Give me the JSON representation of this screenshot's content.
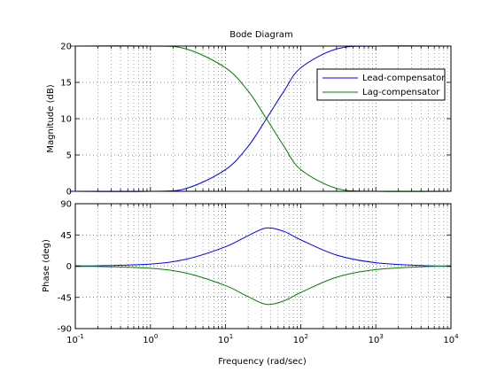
{
  "chart_data": {
    "type": "line",
    "title": "Bode Diagram",
    "xlabel": "Frequency  (rad/sec)",
    "x_scale": "log",
    "xlim": [
      0.1,
      10000
    ],
    "x_ticks": [
      {
        "base": "10",
        "exp": "-1"
      },
      {
        "base": "10",
        "exp": "0"
      },
      {
        "base": "10",
        "exp": "1"
      },
      {
        "base": "10",
        "exp": "2"
      },
      {
        "base": "10",
        "exp": "3"
      },
      {
        "base": "10",
        "exp": "4"
      }
    ],
    "grid": true,
    "legend_placement": "top-right",
    "legend": [
      "Lead-compensator",
      "Lag-compensator"
    ],
    "series_colors": {
      "Lead-compensator": "#0000ff",
      "Lag-compensator": "#008000"
    },
    "magnitude": {
      "ylabel": "Magnitude (dB)",
      "ylim": [
        0,
        20
      ],
      "y_ticks": [
        "0",
        "5",
        "10",
        "15",
        "20"
      ],
      "x": [
        0.1,
        1,
        3,
        10,
        20,
        35,
        60,
        100,
        300,
        1000
      ],
      "series": [
        {
          "name": "Lead-compensator",
          "values": [
            0,
            0,
            0.4,
            3.0,
            6.2,
            10.0,
            13.8,
            17.0,
            19.6,
            20.0
          ]
        },
        {
          "name": "Lag-compensator",
          "values": [
            20,
            20,
            19.6,
            17.0,
            13.8,
            10.0,
            6.2,
            3.0,
            0.4,
            0
          ]
        }
      ]
    },
    "phase": {
      "ylabel": "Phase (deg)",
      "ylim": [
        -90,
        90
      ],
      "y_ticks": [
        "90",
        "45",
        "0",
        "-45",
        "-90"
      ],
      "x": [
        0.2,
        1,
        3,
        10,
        20,
        35,
        60,
        100,
        300,
        1000,
        5000
      ],
      "series": [
        {
          "name": "Lead-compensator",
          "values": [
            0.5,
            3,
            10,
            28,
            44,
            55,
            50,
            38,
            16,
            5,
            0.5
          ]
        },
        {
          "name": "Lag-compensator",
          "values": [
            -0.5,
            -3,
            -10,
            -28,
            -44,
            -55,
            -50,
            -38,
            -16,
            -5,
            -0.5
          ]
        }
      ]
    }
  }
}
